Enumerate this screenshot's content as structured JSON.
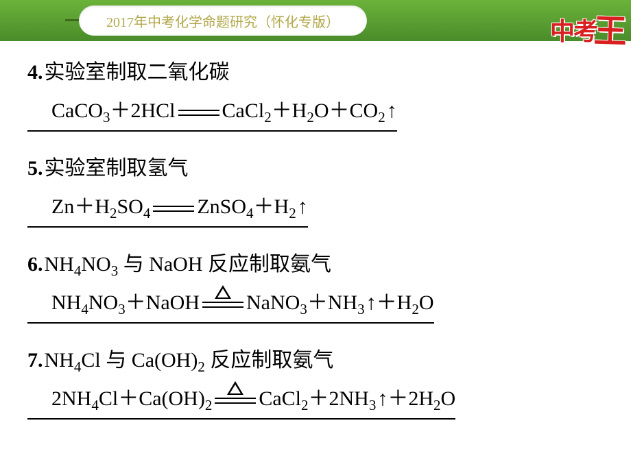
{
  "header": {
    "title": "2017年中考化学命题研究（怀化专版）",
    "logo_main": "中考",
    "logo_sub": "王",
    "title_color": "#b3a84a",
    "bar_gradient_top": "#6bb33a",
    "bar_gradient_bottom": "#4a8c2a",
    "logo_color": "#d92020"
  },
  "items": [
    {
      "num": "4.",
      "title": "实验室制取二氧化碳",
      "equation": {
        "lhs": "CaCO<sub>3</sub>＋2HCl",
        "rhs": "CaCl<sub>2</sub>＋H<sub>2</sub>O＋CO<sub>2</sub>↑",
        "heat": false
      }
    },
    {
      "num": "5.",
      "title": "实验室制取氢气",
      "equation": {
        "lhs": "Zn＋H<sub>2</sub>SO<sub>4</sub>",
        "rhs": "ZnSO<sub>4</sub>＋H<sub>2</sub>↑",
        "heat": false
      }
    },
    {
      "num": "6.",
      "title_html": "NH<sub>4</sub>NO<sub>3</sub> 与 NaOH 反应制取氨气",
      "equation": {
        "lhs": "NH<sub>4</sub>NO<sub>3</sub>＋NaOH",
        "rhs": "NaNO<sub>3</sub>＋NH<sub>3</sub>↑＋H<sub>2</sub>O",
        "heat": true
      }
    },
    {
      "num": "7.",
      "title_html": "NH<sub>4</sub>Cl 与 Ca(OH)<sub>2</sub> 反应制取氨气",
      "equation": {
        "lhs": "2NH<sub>4</sub>Cl＋Ca(OH)<sub>2</sub>",
        "rhs": "CaCl<sub>2</sub>＋2NH<sub>3</sub>↑＋2H<sub>2</sub>O",
        "heat": true
      }
    }
  ]
}
